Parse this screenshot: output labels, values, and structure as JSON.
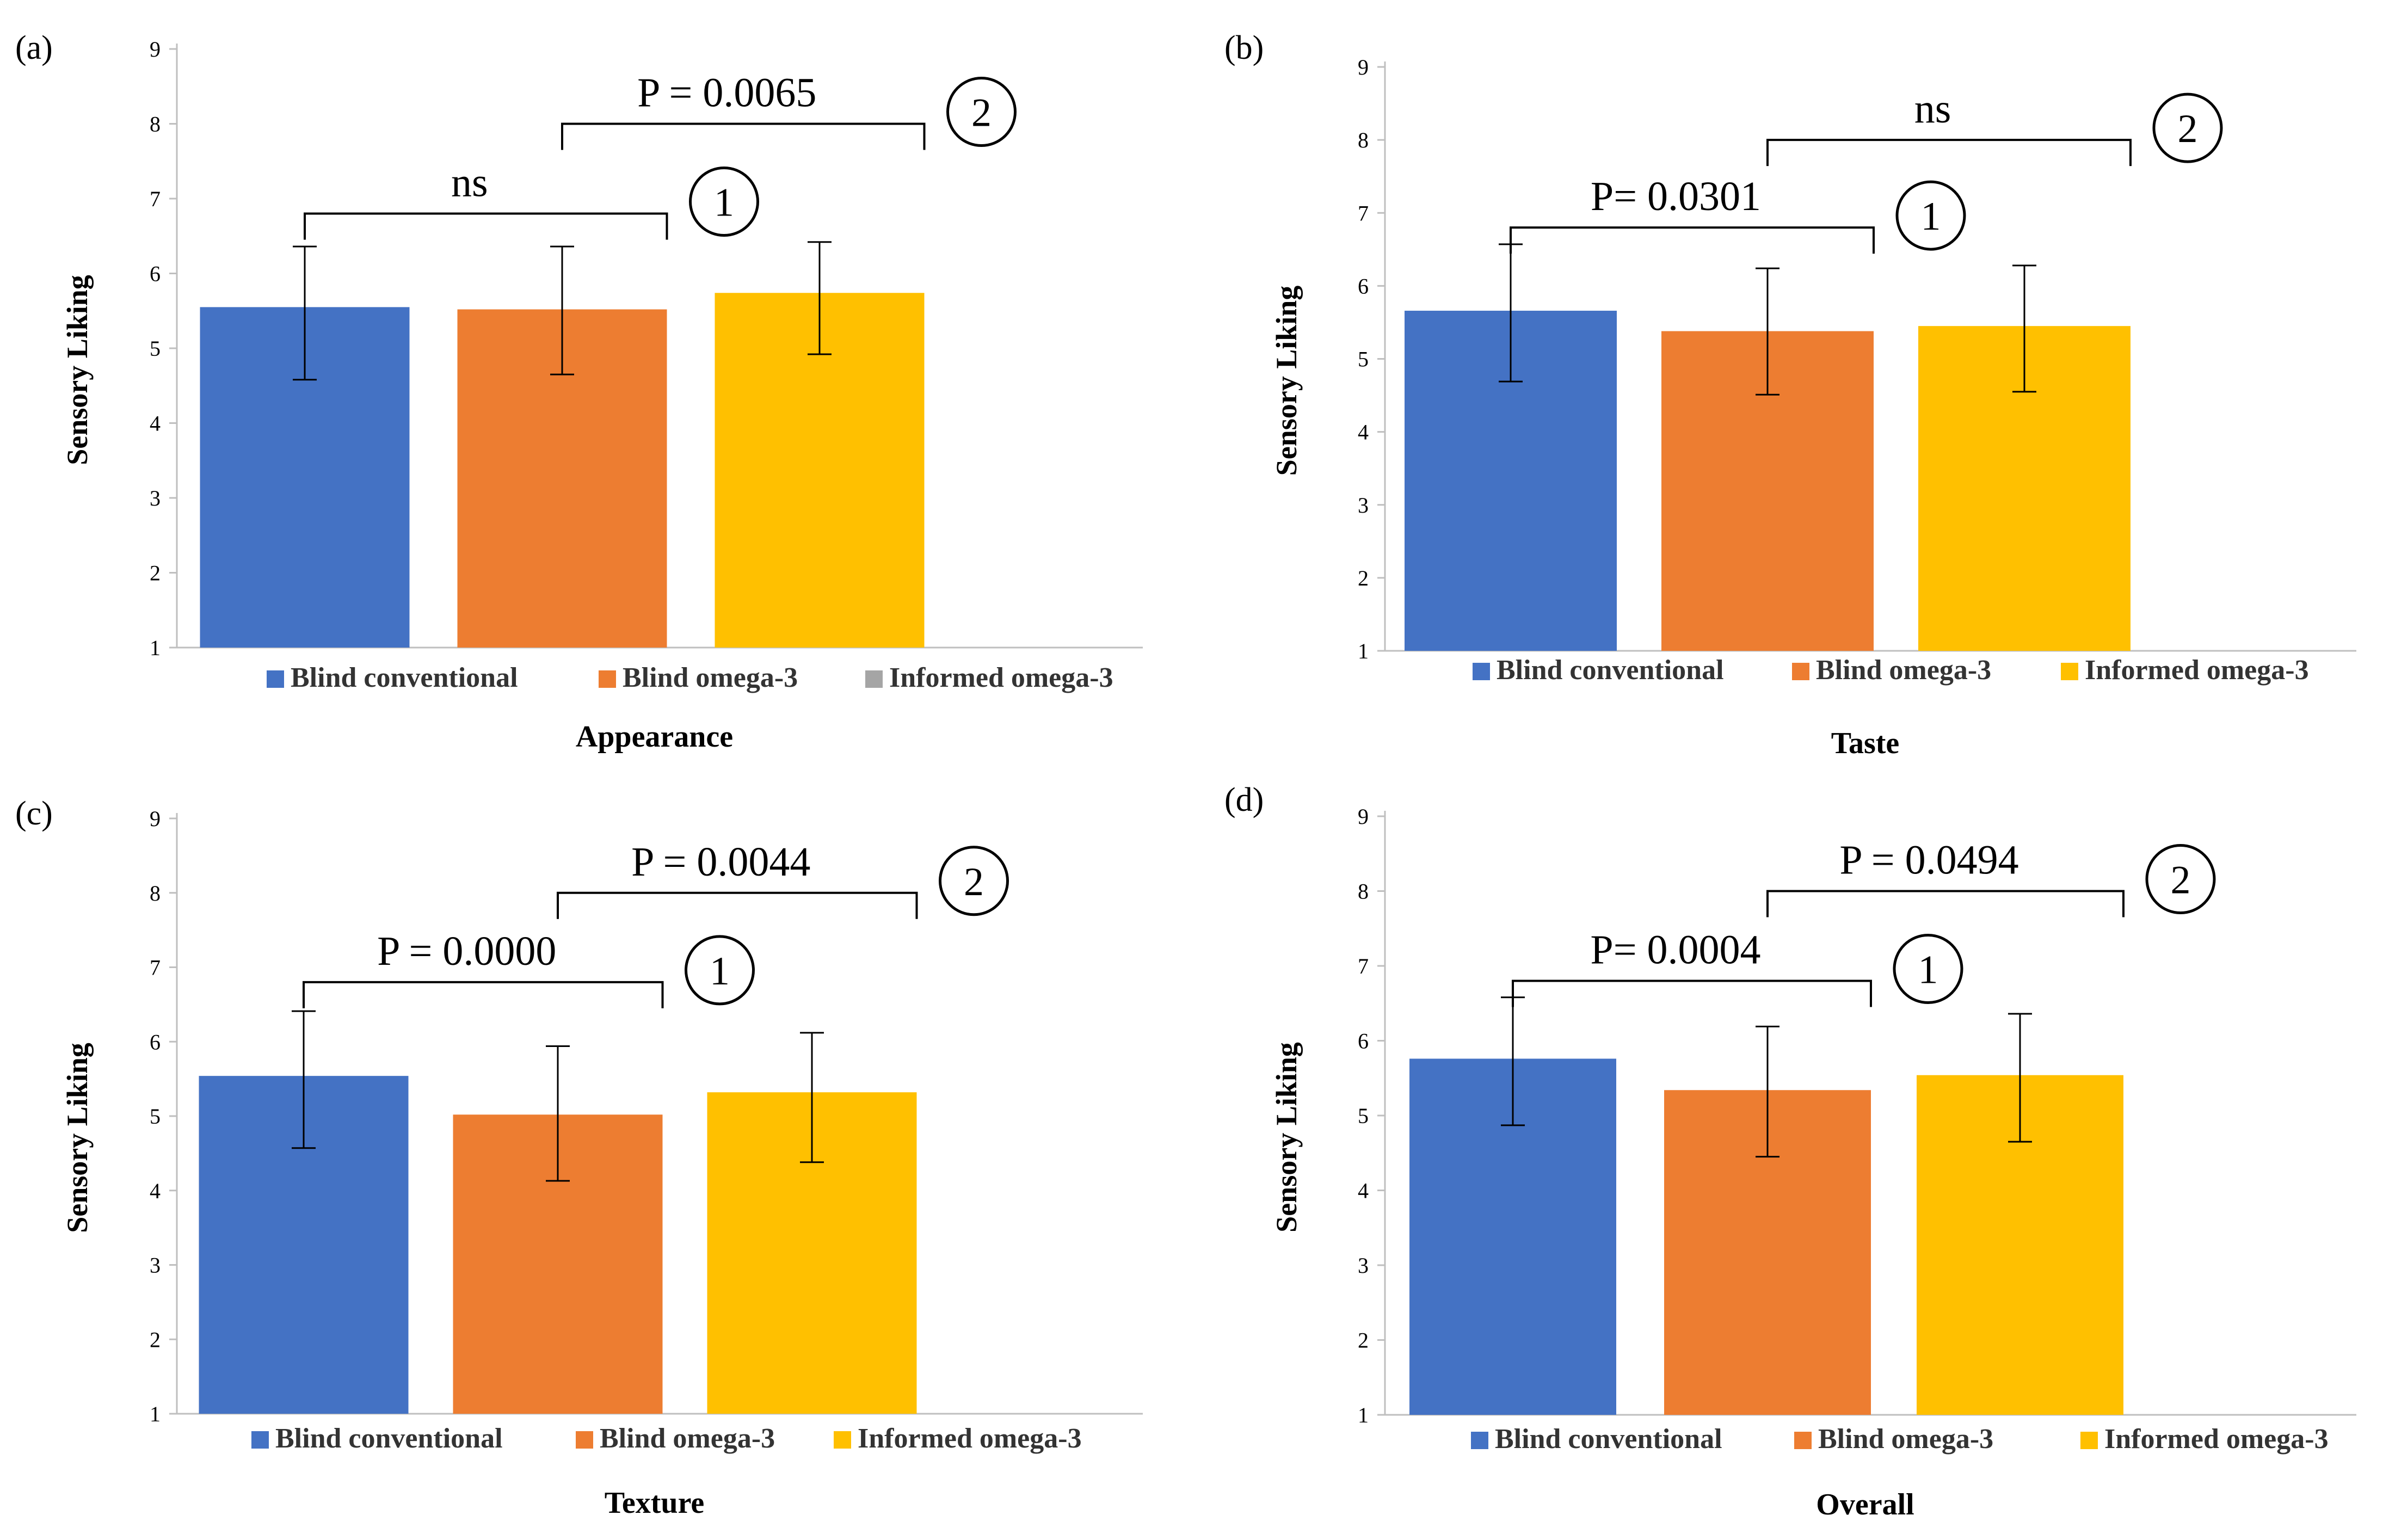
{
  "colors": {
    "blind_conventional": "#4472C4",
    "blind_omega3": "#ED7D31",
    "informed_omega3": "#FFC000",
    "legend_gray": "#A5A5A5",
    "axis": "#BFBFBF",
    "text": "#000000"
  },
  "chart_data": [
    {
      "type": "bar",
      "panel_label": "(a)",
      "title": "Appearance",
      "xlabel": "Appearance",
      "ylabel": "Sensory Liking",
      "ylim": [
        1,
        9
      ],
      "yticks": [
        "1",
        "2",
        "3",
        "4",
        "5",
        "6",
        "7",
        "8",
        "9"
      ],
      "categories": [
        "Blind conventional",
        "Blind omega-3",
        "Informed omega-3"
      ],
      "values": [
        5.55,
        5.52,
        5.74
      ],
      "err_low": [
        4.58,
        4.65,
        4.92
      ],
      "err_high": [
        6.36,
        6.36,
        6.42
      ],
      "legend": [
        {
          "label": "Blind conventional",
          "color": "#4472C4"
        },
        {
          "label": "Blind omega-3",
          "color": "#ED7D31"
        },
        {
          "label": "Informed omega-3",
          "color": "#A5A5A5"
        }
      ],
      "comparisons": [
        {
          "from": 0,
          "to": 1,
          "label": "ns",
          "marker": "1",
          "level": 6.8
        },
        {
          "from": 1,
          "to": 2,
          "label": "P = 0.0065",
          "marker": "2",
          "level": 8.0
        }
      ]
    },
    {
      "type": "bar",
      "panel_label": "(b)",
      "title": "Taste",
      "xlabel": "Taste",
      "ylabel": "Sensory Liking",
      "ylim": [
        1,
        9
      ],
      "yticks": [
        "1",
        "2",
        "3",
        "4",
        "5",
        "6",
        "7",
        "8",
        "9"
      ],
      "categories": [
        "Blind conventional",
        "Blind omega-3",
        "Informed omega-3"
      ],
      "values": [
        5.66,
        5.38,
        5.45
      ],
      "err_low": [
        4.69,
        4.51,
        4.55
      ],
      "err_high": [
        6.57,
        6.24,
        6.28
      ],
      "legend": [
        {
          "label": "Blind conventional",
          "color": "#4472C4"
        },
        {
          "label": "Blind omega-3",
          "color": "#ED7D31"
        },
        {
          "label": "Informed omega-3",
          "color": "#FFC000"
        }
      ],
      "comparisons": [
        {
          "from": 0,
          "to": 1,
          "label": "P= 0.0301",
          "marker": "1",
          "level": 6.8
        },
        {
          "from": 1,
          "to": 2,
          "label": "ns",
          "marker": "2",
          "level": 8.0
        }
      ]
    },
    {
      "type": "bar",
      "panel_label": "(c)",
      "title": "Texture",
      "xlabel": "Texture",
      "ylabel": "Sensory Liking",
      "ylim": [
        1,
        9
      ],
      "yticks": [
        "1",
        "2",
        "3",
        "4",
        "5",
        "6",
        "7",
        "8",
        "9"
      ],
      "categories": [
        "Blind conventional",
        "Blind omega-3",
        "Informed omega-3"
      ],
      "values": [
        5.54,
        5.02,
        5.32
      ],
      "err_low": [
        4.57,
        4.13,
        4.38
      ],
      "err_high": [
        6.41,
        5.94,
        6.12
      ],
      "legend": [
        {
          "label": "Blind conventional",
          "color": "#4472C4"
        },
        {
          "label": "Blind omega-3",
          "color": "#ED7D31"
        },
        {
          "label": "Informed omega-3",
          "color": "#FFC000"
        }
      ],
      "comparisons": [
        {
          "from": 0,
          "to": 1,
          "label": "P =  0.0000",
          "marker": "1",
          "level": 6.8
        },
        {
          "from": 1,
          "to": 2,
          "label": "P = 0.0044",
          "marker": "2",
          "level": 8.0
        }
      ]
    },
    {
      "type": "bar",
      "panel_label": "(d)",
      "title": "Overall",
      "xlabel": "Overall",
      "ylabel": "Sensory Liking",
      "ylim": [
        1,
        9
      ],
      "yticks": [
        "1",
        "2",
        "3",
        "4",
        "5",
        "6",
        "7",
        "8",
        "9"
      ],
      "categories": [
        "Blind conventional",
        "Blind omega-3",
        "Informed omega-3"
      ],
      "values": [
        5.76,
        5.34,
        5.54
      ],
      "err_low": [
        4.87,
        4.45,
        4.65
      ],
      "err_high": [
        6.58,
        6.19,
        6.36
      ],
      "legend": [
        {
          "label": "Blind conventional",
          "color": "#4472C4"
        },
        {
          "label": "Blind omega-3",
          "color": "#ED7D31"
        },
        {
          "label": "Informed omega-3",
          "color": "#FFC000"
        }
      ],
      "comparisons": [
        {
          "from": 0,
          "to": 1,
          "label": "P= 0.0004",
          "marker": "1",
          "level": 6.8
        },
        {
          "from": 1,
          "to": 2,
          "label": "P = 0.0494",
          "marker": "2",
          "level": 8.0
        }
      ]
    }
  ]
}
